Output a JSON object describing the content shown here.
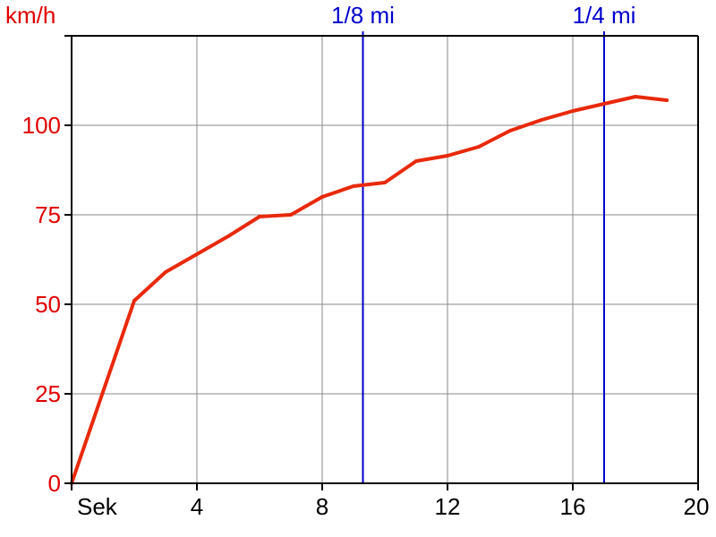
{
  "chart_data": {
    "type": "line",
    "title": "",
    "xlabel": "Sek",
    "ylabel": "km/h",
    "xlim": [
      0,
      20
    ],
    "ylim": [
      0,
      125
    ],
    "x_ticks": [
      4,
      8,
      12,
      16,
      20
    ],
    "y_ticks": [
      0,
      25,
      50,
      75,
      100
    ],
    "grid": true,
    "series": [
      {
        "color": "#e8290b",
        "x": [
          0,
          2,
          3,
          4,
          5,
          6,
          7,
          8,
          9,
          10,
          11,
          12,
          13,
          14,
          15,
          16,
          17,
          18,
          19
        ],
        "y": [
          0,
          51,
          59,
          64,
          69,
          74.5,
          75,
          80,
          83,
          84,
          90,
          91.5,
          94,
          98.5,
          101.5,
          104,
          106,
          108,
          107
        ]
      }
    ],
    "markers": [
      {
        "label": "1/8 mi",
        "x": 9.3
      },
      {
        "label": "1/4 mi",
        "x": 17
      }
    ],
    "colors": {
      "axis_labels": "#e00000",
      "x_tick_labels": "#000000",
      "markers": "#0000cc",
      "grid": "#8a8a8a",
      "axes": "#000000"
    }
  }
}
